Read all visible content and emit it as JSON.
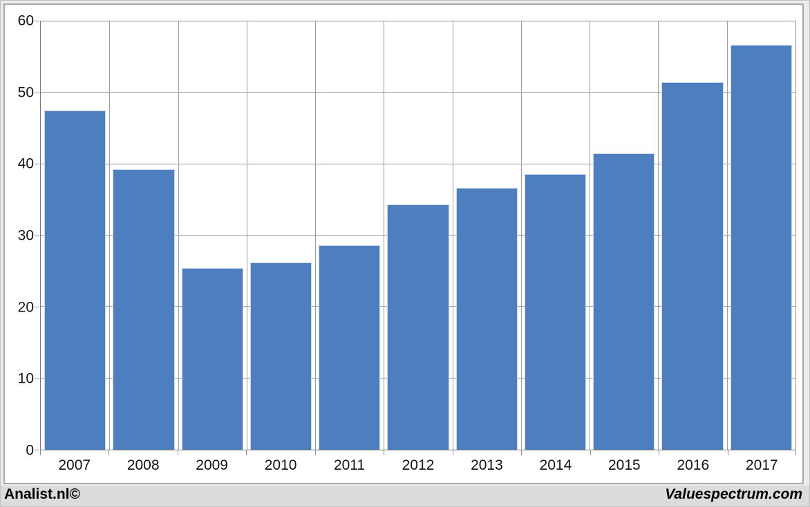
{
  "branding": {
    "left": "Analist.nl©",
    "right": "Valuespectrum.com"
  },
  "chart_data": {
    "type": "bar",
    "categories": [
      "2007",
      "2008",
      "2009",
      "2010",
      "2011",
      "2012",
      "2013",
      "2014",
      "2015",
      "2016",
      "2017"
    ],
    "values": [
      47.5,
      39.3,
      25.5,
      26.2,
      28.6,
      34.4,
      36.7,
      38.6,
      41.5,
      51.5,
      56.7
    ],
    "title": "",
    "xlabel": "",
    "ylabel": "",
    "ylim": [
      0,
      60
    ],
    "yticks": [
      0,
      10,
      20,
      30,
      40,
      50,
      60
    ],
    "grid": true,
    "legend": false,
    "colors": {
      "bar": "#4d7ebd",
      "bar_border": "#ccd9ea",
      "gridline": "#9c9c9c",
      "axis": "#7a7a7a"
    }
  }
}
